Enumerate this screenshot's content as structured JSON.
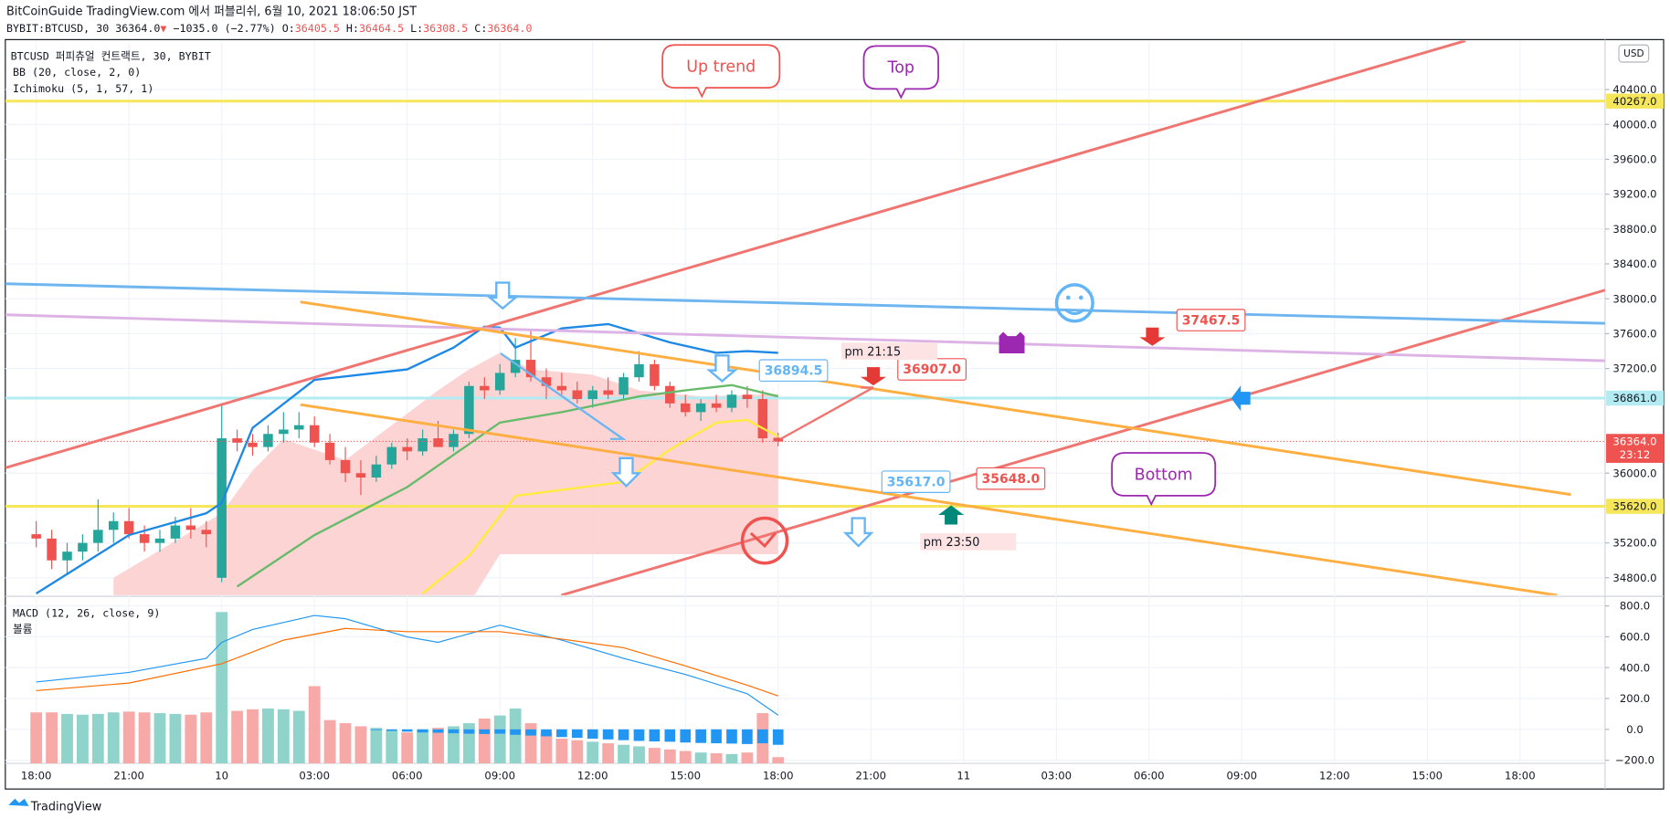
{
  "header": {
    "line1": "BitCoinGuide TradingView.com 에서 퍼블리쉬, 6월 10, 2021 18:06:50 JST",
    "symbol": "BYBIT:BTCUSD, 30",
    "last": "36364.0",
    "change_arrow": "▼",
    "change": "−1035.0 (−2.77%)",
    "ohlc": [
      {
        "key": "O:",
        "value": "36405.5"
      },
      {
        "key": "H:",
        "value": "36464.5"
      },
      {
        "key": "L:",
        "value": "36308.5"
      },
      {
        "key": "C:",
        "value": "36364.0"
      }
    ]
  },
  "legend": {
    "title": "BTCUSD 퍼피츄얼 컨트랙트, 30, BYBIT",
    "bb": "BB (20, close, 2, 0)",
    "ichimoku": "Ichimoku (5, 1, 57, 1)",
    "macd": "MACD (12, 26, close, 9)",
    "volume": "볼륨"
  },
  "currency": "USD",
  "footer": "TradingView",
  "callouts": [
    {
      "text": "Up trend",
      "color": "#ef5350"
    },
    {
      "text": "Top",
      "color": "#9c27b0"
    },
    {
      "text": "Bottom",
      "color": "#9c27b0"
    }
  ],
  "price_notes": [
    {
      "text": "36894.5",
      "color": "#64b5f6"
    },
    {
      "text": "36907.0",
      "color": "#ef5350"
    },
    {
      "text": "37467.5",
      "color": "#ef5350"
    },
    {
      "text": "35617.0",
      "color": "#64b5f6"
    },
    {
      "text": "35648.0",
      "color": "#ef5350"
    }
  ],
  "time_notes": [
    "pm 21:15",
    "pm 23:50"
  ],
  "chart_data": {
    "type": "candlestick",
    "xlim": [
      -2,
      101.5
    ],
    "xticks": [
      {
        "value": 0,
        "label": "18:00"
      },
      {
        "value": 6,
        "label": "21:00"
      },
      {
        "value": 12,
        "label": "10"
      },
      {
        "value": 18,
        "label": "03:00"
      },
      {
        "value": 24,
        "label": "06:00"
      },
      {
        "value": 30,
        "label": "09:00"
      },
      {
        "value": 36,
        "label": "12:00"
      },
      {
        "value": 42,
        "label": "15:00"
      },
      {
        "value": 48,
        "label": "18:00"
      },
      {
        "value": 54,
        "label": "21:00"
      },
      {
        "value": 60,
        "label": "11"
      },
      {
        "value": 66,
        "label": "03:00"
      },
      {
        "value": 72,
        "label": "06:00"
      },
      {
        "value": 78,
        "label": "09:00"
      },
      {
        "value": 84,
        "label": "12:00"
      },
      {
        "value": 90,
        "label": "15:00"
      },
      {
        "value": 96,
        "label": "18:00"
      }
    ],
    "ylim": [
      34600,
      40960
    ],
    "yticks": [
      {
        "value": 40400,
        "label": "40400.0"
      },
      {
        "value": 40000,
        "label": "40000.0"
      },
      {
        "value": 39600,
        "label": "39600.0"
      },
      {
        "value": 39200,
        "label": "39200.0"
      },
      {
        "value": 38800,
        "label": "38800.0"
      },
      {
        "value": 38400,
        "label": "38400.0"
      },
      {
        "value": 38000,
        "label": "38000.0"
      },
      {
        "value": 37600,
        "label": "37600.0"
      },
      {
        "value": 37200,
        "label": "37200.0"
      },
      {
        "value": 36000,
        "label": "36000.0"
      },
      {
        "value": 35200,
        "label": "35200.0"
      },
      {
        "value": 34800,
        "label": "34800.0"
      }
    ],
    "grid": true,
    "up_color": "#26a69a",
    "down_color": "#ef5350",
    "ohlc": [
      [
        35300,
        35450,
        35150,
        35250
      ],
      [
        35250,
        35350,
        34900,
        35000
      ],
      [
        35000,
        35200,
        34850,
        35100
      ],
      [
        35100,
        35300,
        35000,
        35200
      ],
      [
        35200,
        35700,
        35100,
        35350
      ],
      [
        35350,
        35550,
        35200,
        35450
      ],
      [
        35450,
        35600,
        35250,
        35300
      ],
      [
        35300,
        35400,
        35100,
        35200
      ],
      [
        35200,
        35350,
        35100,
        35250
      ],
      [
        35250,
        35500,
        35200,
        35400
      ],
      [
        35400,
        35600,
        35250,
        35350
      ],
      [
        35350,
        35450,
        35150,
        35300
      ],
      [
        34800,
        36800,
        34750,
        36400
      ],
      [
        36400,
        36500,
        36250,
        36350
      ],
      [
        36350,
        36450,
        36200,
        36300
      ],
      [
        36300,
        36550,
        36250,
        36450
      ],
      [
        36450,
        36700,
        36350,
        36500
      ],
      [
        36500,
        36700,
        36400,
        36550
      ],
      [
        36550,
        36650,
        36300,
        36350
      ],
      [
        36350,
        36450,
        36100,
        36150
      ],
      [
        36150,
        36300,
        35900,
        36000
      ],
      [
        36000,
        36150,
        35750,
        35950
      ],
      [
        35950,
        36200,
        35900,
        36100
      ],
      [
        36100,
        36350,
        36050,
        36300
      ],
      [
        36300,
        36400,
        36150,
        36250
      ],
      [
        36250,
        36500,
        36200,
        36400
      ],
      [
        36400,
        36600,
        36300,
        36300
      ],
      [
        36300,
        36500,
        36250,
        36450
      ],
      [
        36450,
        37050,
        36400,
        37000
      ],
      [
        37000,
        37100,
        36850,
        36950
      ],
      [
        36950,
        37250,
        36900,
        37150
      ],
      [
        37150,
        37550,
        37100,
        37300
      ],
      [
        37300,
        37650,
        37050,
        37100
      ],
      [
        37100,
        37200,
        36850,
        37000
      ],
      [
        37000,
        37150,
        36900,
        36950
      ],
      [
        36950,
        37050,
        36800,
        36850
      ],
      [
        36850,
        37000,
        36750,
        36950
      ],
      [
        36950,
        37100,
        36850,
        36900
      ],
      [
        36900,
        37150,
        36850,
        37100
      ],
      [
        37100,
        37400,
        37050,
        37250
      ],
      [
        37250,
        37300,
        36950,
        37000
      ],
      [
        37000,
        37050,
        36750,
        36800
      ],
      [
        36800,
        36900,
        36650,
        36700
      ],
      [
        36700,
        36850,
        36600,
        36800
      ],
      [
        36800,
        36900,
        36700,
        36750
      ],
      [
        36750,
        36950,
        36700,
        36900
      ],
      [
        36900,
        37000,
        36750,
        36850
      ],
      [
        36850,
        36950,
        36350,
        36400
      ],
      [
        36405.5,
        36464.5,
        36308.5,
        36364
      ]
    ],
    "cloud": {
      "color": "#fccfcf",
      "x": [
        5,
        12,
        14,
        16,
        18,
        20,
        26,
        28,
        30,
        32,
        36,
        39,
        43,
        48
      ],
      "upper": [
        34800,
        35540,
        36030,
        36390,
        36270,
        36150,
        36950,
        37190,
        37380,
        37190,
        37130,
        36950,
        36880,
        36910
      ],
      "lower": [
        34500,
        34500,
        34500,
        34500,
        34500,
        34500,
        34500,
        34500,
        35070,
        35070,
        35070,
        35070,
        35070,
        35070
      ]
    },
    "lines": [
      {
        "color": "#1e88e5",
        "x": [
          0,
          6,
          11,
          12,
          14,
          18,
          21,
          24,
          27,
          29,
          30,
          31,
          34,
          37,
          41,
          44,
          46,
          48
        ],
        "values": [
          34620,
          35290,
          35540,
          35660,
          36520,
          37070,
          37130,
          37190,
          37440,
          37680,
          37670,
          37440,
          37660,
          37710,
          37500,
          37380,
          37400,
          37380
        ]
      },
      {
        "color": "#66bb6a",
        "x": [
          13,
          18,
          24,
          30,
          34,
          39,
          42,
          45,
          48
        ],
        "values": [
          34700,
          35290,
          35840,
          36580,
          36700,
          36880,
          36950,
          37010,
          36880
        ]
      },
      {
        "color": "#ffeb3b",
        "x": [
          25,
          28,
          31,
          38,
          41,
          44,
          46,
          48
        ],
        "values": [
          34620,
          35050,
          35740,
          35900,
          36270,
          36580,
          36610,
          36420
        ]
      }
    ],
    "levels": [
      {
        "value": 40267,
        "label": "40267.0",
        "color": "#f5e65a"
      },
      {
        "value": 35620,
        "label": "35620.0",
        "color": "#f5e65a"
      },
      {
        "value": 36861,
        "label": "36861.0",
        "color": "#b2ebf2"
      }
    ],
    "last_price": {
      "value": 36364,
      "label": "36364.0",
      "countdown": "23:12",
      "color": "#ef5350"
    },
    "macd": {
      "ylim": [
        -220,
        855
      ],
      "yticks": [
        {
          "value": 800,
          "label": "800.0"
        },
        {
          "value": 600,
          "label": "600.0"
        },
        {
          "value": 400,
          "label": "400.0"
        },
        {
          "value": 200,
          "label": "200.0"
        },
        {
          "value": 0,
          "label": "0.0"
        },
        {
          "value": -200,
          "label": "−200.0"
        }
      ],
      "volume_up_color": "#8fd3cb",
      "volume_down_color": "#f7a9a7",
      "volume": [
        110,
        110,
        100,
        95,
        100,
        110,
        115,
        110,
        105,
        100,
        95,
        110,
        760,
        120,
        130,
        135,
        130,
        120,
        280,
        60,
        40,
        20,
        10,
        -10,
        -20,
        0,
        10,
        20,
        40,
        70,
        90,
        135,
        40,
        -20,
        -60,
        -70,
        -80,
        -90,
        -100,
        -110,
        -120,
        -130,
        -140,
        -150,
        -155,
        -160,
        -150,
        105,
        -180
      ],
      "histogram": {
        "color": "#2196f3",
        "x": [
          22,
          23,
          24,
          25,
          26,
          27,
          28,
          29,
          30,
          31,
          32,
          33,
          34,
          35,
          36,
          37,
          38,
          39,
          40,
          41,
          42,
          43,
          44,
          45,
          46,
          47,
          48
        ],
        "values": [
          -5,
          -10,
          -15,
          -20,
          -22,
          -25,
          -28,
          -30,
          -28,
          -35,
          -40,
          -45,
          -50,
          -55,
          -60,
          -65,
          -70,
          -75,
          -78,
          -80,
          -85,
          -88,
          -90,
          -92,
          -95,
          -90,
          -100
        ]
      },
      "macd_line": {
        "color": "#2196f3",
        "x": [
          0,
          6,
          11,
          12,
          14,
          18,
          20,
          24,
          26,
          30,
          34,
          38,
          42,
          46,
          48
        ],
        "values": [
          307,
          369,
          460,
          564,
          647,
          738,
          717,
          599,
          564,
          675,
          578,
          460,
          356,
          231,
          92
        ]
      },
      "signal_line": {
        "color": "#ff6d00",
        "x": [
          0,
          6,
          12,
          16,
          20,
          24,
          30,
          34,
          38,
          42,
          46,
          48
        ],
        "values": [
          251,
          300,
          425,
          578,
          654,
          633,
          633,
          585,
          529,
          411,
          286,
          217
        ]
      }
    }
  }
}
